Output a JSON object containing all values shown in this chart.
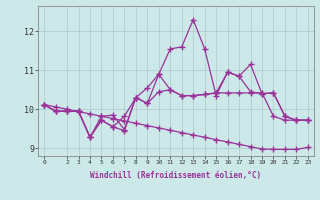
{
  "xlabel": "Windchill (Refroidissement éolien,°C)",
  "background_color": "#cce8e8",
  "line_color": "#993399",
  "grid_color": "#aacccc",
  "xlim": [
    -0.5,
    23.5
  ],
  "ylim": [
    8.8,
    12.65
  ],
  "xticks": [
    0,
    2,
    3,
    4,
    5,
    6,
    7,
    8,
    9,
    10,
    11,
    12,
    13,
    14,
    15,
    16,
    17,
    18,
    19,
    20,
    21,
    22,
    23
  ],
  "yticks": [
    9,
    10,
    11,
    12
  ],
  "lines": [
    {
      "x": [
        0,
        1,
        2,
        3,
        4,
        5,
        6,
        7,
        8,
        9,
        10,
        11,
        12,
        13,
        14,
        15,
        16,
        17,
        18,
        19,
        20,
        21,
        22,
        23
      ],
      "y": [
        10.12,
        10.06,
        10.0,
        9.94,
        9.88,
        9.82,
        9.76,
        9.7,
        9.64,
        9.58,
        9.52,
        9.46,
        9.4,
        9.34,
        9.28,
        9.22,
        9.16,
        9.1,
        9.04,
        8.98,
        8.97,
        8.97,
        8.97,
        9.02
      ]
    },
    {
      "x": [
        0,
        1,
        2,
        3,
        4,
        5,
        6,
        7,
        8,
        9,
        10,
        11,
        12,
        13,
        14,
        15,
        16,
        17,
        18,
        19,
        20,
        21,
        22,
        23
      ],
      "y": [
        10.12,
        9.95,
        9.95,
        9.95,
        9.28,
        9.72,
        9.55,
        9.82,
        10.3,
        10.15,
        10.45,
        10.5,
        10.35,
        10.35,
        10.38,
        10.42,
        10.42,
        10.42,
        10.42,
        10.42,
        9.82,
        9.72,
        9.72,
        9.72
      ]
    },
    {
      "x": [
        0,
        1,
        2,
        3,
        4,
        5,
        6,
        7,
        8,
        9,
        10,
        11,
        12,
        13,
        14,
        15,
        16,
        17,
        18,
        19,
        20,
        21,
        22,
        23
      ],
      "y": [
        10.12,
        9.95,
        9.95,
        9.95,
        9.28,
        9.72,
        9.55,
        9.45,
        10.3,
        10.15,
        10.9,
        11.55,
        11.6,
        12.3,
        11.55,
        10.35,
        10.95,
        10.85,
        10.45,
        10.4,
        10.42,
        9.82,
        9.72,
        9.72
      ]
    },
    {
      "x": [
        0,
        1,
        2,
        3,
        4,
        5,
        6,
        7,
        8,
        9,
        10,
        11,
        12,
        13,
        14,
        15,
        16,
        17,
        18,
        19,
        20,
        21,
        22,
        23
      ],
      "y": [
        10.12,
        9.95,
        9.95,
        9.95,
        9.28,
        9.82,
        9.85,
        9.48,
        10.3,
        10.55,
        10.9,
        10.5,
        10.35,
        10.35,
        10.38,
        10.42,
        10.95,
        10.85,
        11.15,
        10.4,
        10.42,
        9.82,
        9.72,
        9.72
      ]
    }
  ],
  "marker": "+",
  "markersize": 4,
  "linewidth": 0.9
}
